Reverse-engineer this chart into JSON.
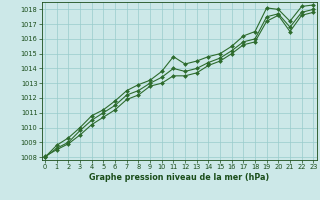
{
  "xlabel": "Graphe pression niveau de la mer (hPa)",
  "xlim": [
    -0.3,
    23.3
  ],
  "ylim": [
    1007.8,
    1018.5
  ],
  "yticks": [
    1008,
    1009,
    1010,
    1011,
    1012,
    1013,
    1014,
    1015,
    1016,
    1017,
    1018
  ],
  "xticks": [
    0,
    1,
    2,
    3,
    4,
    5,
    6,
    7,
    8,
    9,
    10,
    11,
    12,
    13,
    14,
    15,
    16,
    17,
    18,
    19,
    20,
    21,
    22,
    23
  ],
  "bg_color": "#cce8e8",
  "plot_bg_color": "#cce8e8",
  "grid_color": "#99cccc",
  "line_color": "#2d6b2d",
  "marker_color": "#2d6b2d",
  "series": [
    {
      "x": [
        0,
        1,
        2,
        3,
        4,
        5,
        6,
        7,
        8,
        9,
        10,
        11,
        12,
        13,
        14,
        15,
        16,
        17,
        18,
        19,
        20,
        21,
        22,
        23
      ],
      "y": [
        1008.0,
        1008.8,
        1009.3,
        1010.0,
        1010.8,
        1011.2,
        1011.8,
        1012.5,
        1012.9,
        1013.2,
        1013.8,
        1014.8,
        1014.3,
        1014.5,
        1014.8,
        1015.0,
        1015.5,
        1016.2,
        1016.5,
        1018.1,
        1018.0,
        1017.2,
        1018.2,
        1018.3
      ]
    },
    {
      "x": [
        0,
        1,
        2,
        3,
        4,
        5,
        6,
        7,
        8,
        9,
        10,
        11,
        12,
        13,
        14,
        15,
        16,
        17,
        18,
        19,
        20,
        21,
        22,
        23
      ],
      "y": [
        1008.0,
        1008.6,
        1009.0,
        1009.8,
        1010.5,
        1011.0,
        1011.5,
        1012.2,
        1012.5,
        1013.0,
        1013.4,
        1014.0,
        1013.8,
        1014.0,
        1014.4,
        1014.7,
        1015.2,
        1015.8,
        1016.0,
        1017.5,
        1017.7,
        1016.8,
        1017.8,
        1018.0
      ]
    },
    {
      "x": [
        0,
        1,
        2,
        3,
        4,
        5,
        6,
        7,
        8,
        9,
        10,
        11,
        12,
        13,
        14,
        15,
        16,
        17,
        18,
        19,
        20,
        21,
        22,
        23
      ],
      "y": [
        1008.05,
        1008.5,
        1008.9,
        1009.5,
        1010.2,
        1010.7,
        1011.2,
        1011.9,
        1012.2,
        1012.8,
        1013.0,
        1013.5,
        1013.5,
        1013.7,
        1014.2,
        1014.5,
        1015.0,
        1015.6,
        1015.8,
        1017.2,
        1017.6,
        1016.5,
        1017.6,
        1017.8
      ]
    }
  ],
  "font_color": "#1a4d1a",
  "label_fontsize": 5.8,
  "tick_fontsize": 4.8,
  "markersize": 2.0,
  "linewidth": 0.8
}
